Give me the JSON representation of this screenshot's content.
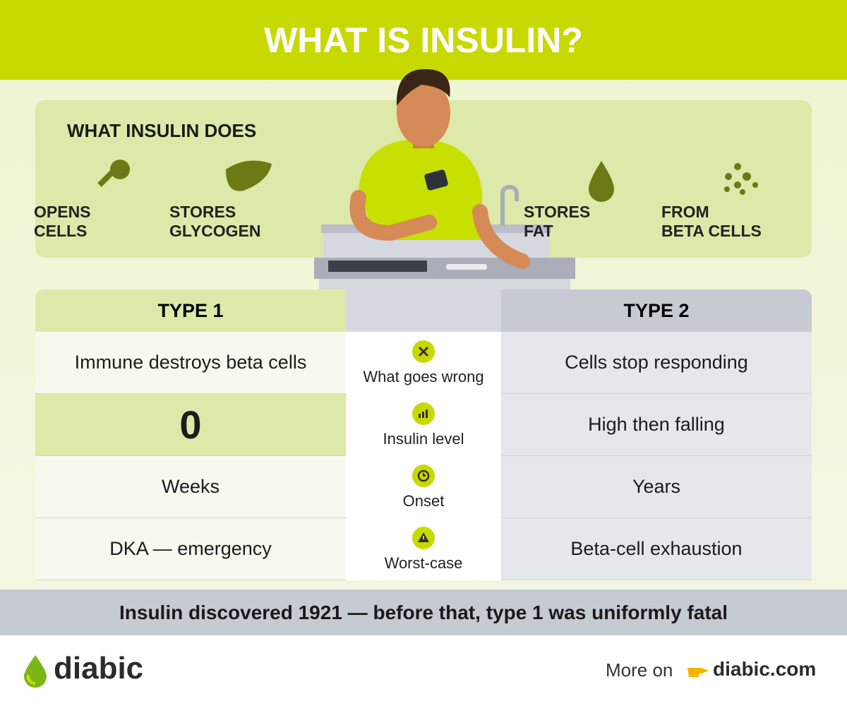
{
  "header": {
    "title": "WHAT IS INSULIN?"
  },
  "functions": {
    "title": "WHAT INSULIN DOES",
    "items": [
      [
        "OPENS",
        "CELLS"
      ],
      [
        "STORES",
        "GLYCOGEN"
      ],
      [
        "STORES",
        "FAT"
      ],
      [
        "FROM",
        "BETA CELLS"
      ]
    ]
  },
  "table": {
    "headers": [
      "TYPE 1",
      "TYPE 2"
    ],
    "rows": [
      {
        "type1": "Immune destroys beta cells",
        "label": "What goes wrong",
        "type2": "Cells stop responding"
      },
      {
        "type1": 0,
        "label": "Insulin level",
        "type2": "High then falling"
      },
      {
        "type1": "Weeks",
        "label": "Onset",
        "type2": "Years"
      },
      {
        "type1": "DKA — emergency",
        "label": "Worst-case",
        "type2": "Beta-cell exhaustion"
      }
    ]
  },
  "footer": {
    "note": "Insulin discovered 1921 — before that, type 1 was uniformly fatal"
  },
  "brand": {
    "name": "diabic",
    "more": "More on",
    "link": "diabic.com"
  }
}
